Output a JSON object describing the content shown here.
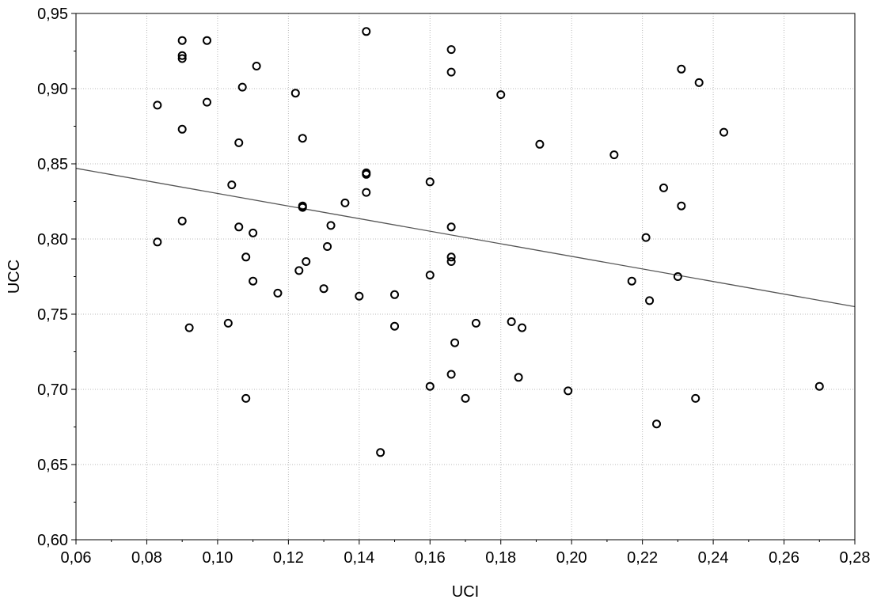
{
  "chart_data": {
    "type": "scatter",
    "xlabel": "UCI",
    "ylabel": "UCC",
    "xlim": [
      0.06,
      0.28
    ],
    "ylim": [
      0.6,
      0.95
    ],
    "x_ticks": [
      "0,06",
      "0,08",
      "0,10",
      "0,12",
      "0,14",
      "0,16",
      "0,18",
      "0,20",
      "0,22",
      "0,24",
      "0,26",
      "0,28"
    ],
    "y_ticks": [
      "0,60",
      "0,65",
      "0,70",
      "0,75",
      "0,80",
      "0,85",
      "0,90",
      "0,95"
    ],
    "grid": true,
    "fit_line": {
      "x": [
        0.06,
        0.28
      ],
      "y": [
        0.847,
        0.755
      ]
    },
    "series": [
      {
        "points": [
          [
            0.083,
            0.889
          ],
          [
            0.083,
            0.798
          ],
          [
            0.09,
            0.932
          ],
          [
            0.09,
            0.922
          ],
          [
            0.09,
            0.92
          ],
          [
            0.09,
            0.873
          ],
          [
            0.09,
            0.812
          ],
          [
            0.092,
            0.741
          ],
          [
            0.097,
            0.891
          ],
          [
            0.097,
            0.932
          ],
          [
            0.103,
            0.744
          ],
          [
            0.104,
            0.836
          ],
          [
            0.106,
            0.864
          ],
          [
            0.106,
            0.808
          ],
          [
            0.107,
            0.901
          ],
          [
            0.108,
            0.788
          ],
          [
            0.108,
            0.694
          ],
          [
            0.11,
            0.804
          ],
          [
            0.11,
            0.772
          ],
          [
            0.111,
            0.915
          ],
          [
            0.117,
            0.764
          ],
          [
            0.122,
            0.897
          ],
          [
            0.123,
            0.779
          ],
          [
            0.124,
            0.867
          ],
          [
            0.124,
            0.822
          ],
          [
            0.124,
            0.821
          ],
          [
            0.125,
            0.785
          ],
          [
            0.13,
            0.767
          ],
          [
            0.131,
            0.795
          ],
          [
            0.132,
            0.809
          ],
          [
            0.136,
            0.824
          ],
          [
            0.14,
            0.762
          ],
          [
            0.142,
            0.938
          ],
          [
            0.142,
            0.844
          ],
          [
            0.142,
            0.843
          ],
          [
            0.142,
            0.831
          ],
          [
            0.146,
            0.658
          ],
          [
            0.15,
            0.742
          ],
          [
            0.15,
            0.763
          ],
          [
            0.16,
            0.838
          ],
          [
            0.16,
            0.776
          ],
          [
            0.16,
            0.702
          ],
          [
            0.166,
            0.926
          ],
          [
            0.166,
            0.911
          ],
          [
            0.166,
            0.808
          ],
          [
            0.166,
            0.788
          ],
          [
            0.166,
            0.785
          ],
          [
            0.166,
            0.71
          ],
          [
            0.167,
            0.731
          ],
          [
            0.17,
            0.694
          ],
          [
            0.173,
            0.744
          ],
          [
            0.18,
            0.896
          ],
          [
            0.183,
            0.745
          ],
          [
            0.185,
            0.708
          ],
          [
            0.186,
            0.741
          ],
          [
            0.191,
            0.863
          ],
          [
            0.199,
            0.699
          ],
          [
            0.212,
            0.856
          ],
          [
            0.217,
            0.772
          ],
          [
            0.221,
            0.801
          ],
          [
            0.222,
            0.759
          ],
          [
            0.224,
            0.677
          ],
          [
            0.226,
            0.834
          ],
          [
            0.23,
            0.775
          ],
          [
            0.231,
            0.913
          ],
          [
            0.231,
            0.822
          ],
          [
            0.235,
            0.694
          ],
          [
            0.236,
            0.904
          ],
          [
            0.243,
            0.871
          ],
          [
            0.27,
            0.702
          ]
        ]
      }
    ]
  }
}
